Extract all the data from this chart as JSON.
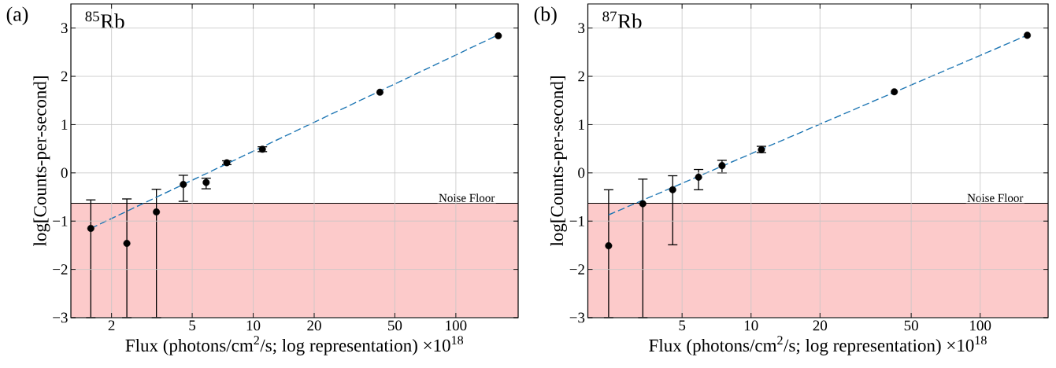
{
  "chart_data": [
    {
      "type": "scatter",
      "title": "(a)",
      "annotations": [
        "$^{85}$Rb"
      ],
      "xlabel": "Flux (photons/cm$^{2}$/s; log representation)  ×10$^{18}$",
      "ylabel": "log[Counts-per-second]",
      "log": "x",
      "grid": true,
      "xlim": [
        1.26,
        203
      ],
      "ylim": [
        -3,
        3.5
      ],
      "xticks": [
        2,
        5,
        10,
        20,
        50,
        100
      ],
      "yticks": [
        {
          "value": -3,
          "label": "−3"
        },
        {
          "value": -2,
          "label": "−2"
        },
        {
          "value": -1,
          "label": "−1"
        },
        0,
        1,
        2,
        3
      ],
      "bands": [
        {
          "axis": "y",
          "from": -3,
          "to": -0.63,
          "color": "#fccaca"
        }
      ],
      "ref_lines": [
        {
          "axis": "y",
          "value": -0.63,
          "label": "Noise Floor",
          "color": "#000000"
        }
      ],
      "series": [
        {
          "color": "#000000",
          "marker": "circle",
          "x": [
            1.58,
            2.38,
            3.33,
            4.52,
            5.86,
            7.41,
            11.1,
            42.2,
            162
          ],
          "values": [
            -1.15,
            -1.46,
            -0.81,
            -0.24,
            -0.2,
            0.21,
            0.49,
            1.67,
            2.84
          ],
          "errors": [
            [
              -3,
              -0.56
            ],
            [
              -3,
              -0.54
            ],
            [
              -3,
              -0.34
            ],
            [
              -0.59,
              -0.05
            ],
            [
              -0.33,
              -0.11
            ],
            [
              0.17,
              0.25
            ],
            [
              0.44,
              0.54
            ],
            null,
            null
          ]
        },
        {
          "type": "line",
          "color": "#1f77b4",
          "line_style": "dashed",
          "marker": "none",
          "x": [
            1.58,
            162
          ],
          "values": [
            -1.15,
            2.86
          ]
        }
      ]
    },
    {
      "type": "scatter",
      "title": "(b)",
      "annotations": [
        "$^{87}$Rb"
      ],
      "xlabel": "Flux (photons/cm$^{2}$/s; log representation)  ×10$^{18}$",
      "ylabel": "log[Counts-per-second]",
      "log": "x",
      "grid": true,
      "xlim": [
        1.94,
        198
      ],
      "ylim": [
        -3,
        3.5
      ],
      "xticks": [
        5,
        10,
        20,
        50,
        100
      ],
      "yticks": [
        {
          "value": -3,
          "label": "−3"
        },
        {
          "value": -2,
          "label": "−2"
        },
        {
          "value": -1,
          "label": "−1"
        },
        0,
        1,
        2,
        3
      ],
      "bands": [
        {
          "axis": "y",
          "from": -3,
          "to": -0.63,
          "color": "#fccaca"
        }
      ],
      "ref_lines": [
        {
          "axis": "y",
          "value": -0.63,
          "label": "Noise Floor",
          "color": "#000000"
        }
      ],
      "series": [
        {
          "color": "#000000",
          "marker": "circle",
          "x": [
            2.39,
            3.37,
            4.55,
            5.9,
            7.47,
            11.1,
            42.2,
            160.6
          ],
          "values": [
            -1.51,
            -0.64,
            -0.35,
            -0.09,
            0.15,
            0.48,
            1.68,
            2.85
          ],
          "errors": [
            [
              -3,
              -0.35
            ],
            [
              -3,
              -0.13
            ],
            [
              -1.49,
              -0.06
            ],
            [
              -0.35,
              0.07
            ],
            [
              0.0,
              0.26
            ],
            [
              0.42,
              0.55
            ],
            null,
            null
          ]
        },
        {
          "type": "line",
          "color": "#1f77b4",
          "line_style": "dashed",
          "marker": "none",
          "x": [
            2.39,
            162
          ],
          "values": [
            -0.87,
            2.86
          ]
        }
      ]
    }
  ]
}
